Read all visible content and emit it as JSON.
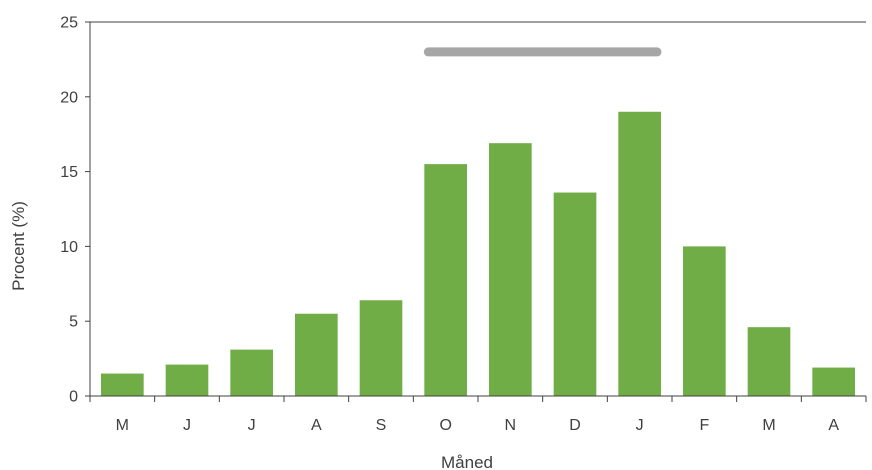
{
  "chart_data": {
    "type": "bar",
    "categories": [
      "M",
      "J",
      "J",
      "A",
      "S",
      "O",
      "N",
      "D",
      "J",
      "F",
      "M",
      "A"
    ],
    "values": [
      1.5,
      2.1,
      3.1,
      5.5,
      6.4,
      15.5,
      16.9,
      13.6,
      19.0,
      10.0,
      4.6,
      1.9
    ],
    "xlabel": "Måned",
    "ylabel": "Procent (%)",
    "ylim": [
      0,
      25
    ],
    "yticks": [
      0,
      5,
      10,
      15,
      20,
      25
    ],
    "grid": false,
    "bar_color": "#70ad47",
    "highlight_band": {
      "from_category_index": 5,
      "to_category_index": 8,
      "y": 23.0,
      "color": "#a6a6a6"
    }
  }
}
